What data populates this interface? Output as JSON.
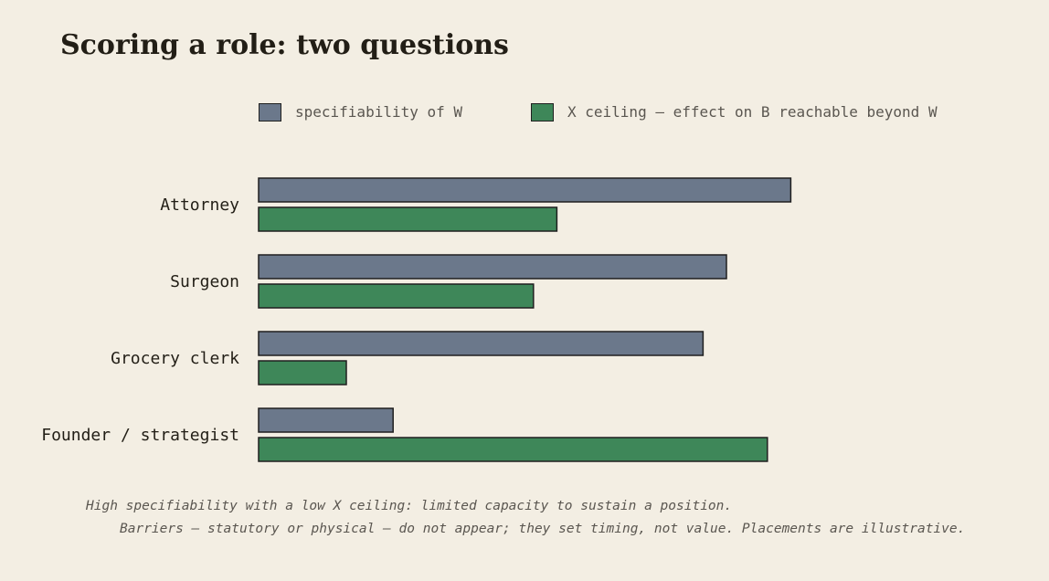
{
  "chart_data": {
    "type": "bar",
    "orientation": "horizontal",
    "title": "Scoring a role: two questions",
    "categories": [
      "Attorney",
      "Surgeon",
      "Grocery clerk",
      "Founder / strategist"
    ],
    "series": [
      {
        "name": "specifiability of W",
        "color": "#6b788b",
        "values": [
          0.91,
          0.8,
          0.76,
          0.23
        ]
      },
      {
        "name": "X ceiling — effect on B reachable beyond W",
        "color": "#3e8759",
        "values": [
          0.51,
          0.47,
          0.15,
          0.87
        ]
      }
    ],
    "xlim": [
      0,
      1
    ],
    "grid": false,
    "legend_position": "top",
    "xlabel": "",
    "ylabel": ""
  },
  "footnotes": [
    "High specifiability with a low X ceiling: limited capacity to sustain a position.",
    "Barriers — statutory or physical — do not appear; they set timing, not value. Placements are illustrative."
  ]
}
